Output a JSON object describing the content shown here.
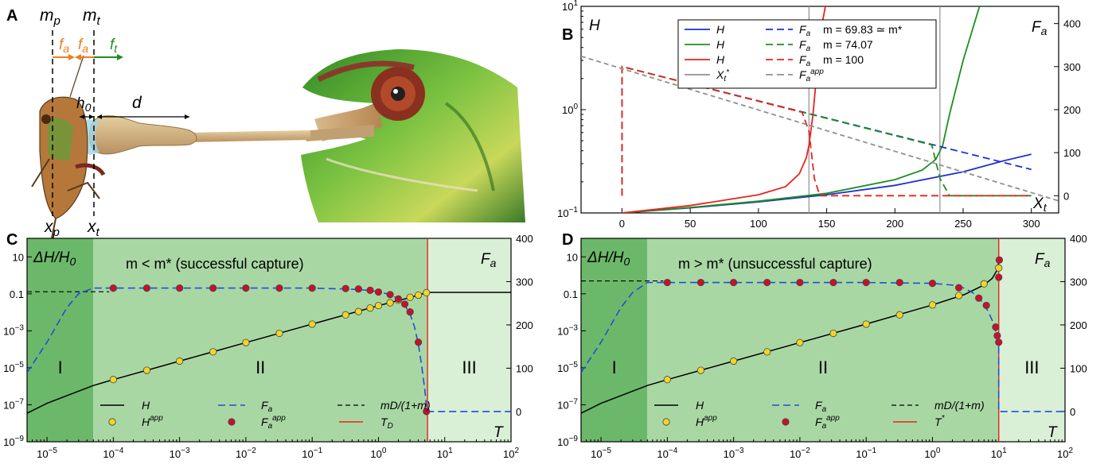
{
  "panels": {
    "A": {
      "letter": "A",
      "labels": {
        "m_p": "m",
        "m_p_sub": "p",
        "m_t": "m",
        "m_t_sub": "t",
        "f_a": "f",
        "f_a_sub": "a",
        "f_t": "f",
        "f_t_sub": "t",
        "h0": "h",
        "h0_sub": "0",
        "d": "d",
        "x_p": "x",
        "x_p_sub": "p",
        "x_t": "x",
        "x_t_sub": "t"
      },
      "colors": {
        "orange": "#f07d1a",
        "green": "#1e8f1e"
      },
      "illustration": [
        "cricket-drawing",
        "chameleon-drawing",
        "tongue-drawing"
      ]
    },
    "B": {
      "letter": "B",
      "left_label": "H",
      "right_label": "F",
      "right_label_sub": "a",
      "x_label": "X",
      "x_label_sub": "t",
      "legend": {
        "col1": [
          {
            "color": "#1f2fd0",
            "text": "H",
            "style": "solid"
          },
          {
            "color": "#1e8f1e",
            "text": "H",
            "style": "solid"
          },
          {
            "color": "#e8231e",
            "text": "H",
            "style": "solid"
          },
          {
            "color": "#909090",
            "text": "X",
            "sub": "t",
            "sup": "*",
            "style": "solid"
          }
        ],
        "col2": [
          {
            "color": "#1f2fd0",
            "text": "F",
            "sub": "a",
            "style": "dash"
          },
          {
            "color": "#1e8f1e",
            "text": "F",
            "sub": "a",
            "style": "dash"
          },
          {
            "color": "#e8231e",
            "text": "F",
            "sub": "a",
            "style": "dash"
          },
          {
            "color": "#909090",
            "text": "F",
            "sub": "a",
            "sup": "app",
            "style": "dash"
          }
        ],
        "col3": [
          {
            "color": "#1f2fd0",
            "text": "m = 69.83 ≃ m*"
          },
          {
            "color": "#1e8f1e",
            "text": "m = 74.07"
          },
          {
            "color": "#e8231e",
            "text": "m = 100"
          }
        ]
      }
    },
    "C": {
      "letter": "C",
      "left_label": "ΔH/H",
      "left_label_sub": "0",
      "right_label": "F",
      "right_label_sub": "a",
      "x_label": "T",
      "caption": "m < m* (successful capture)",
      "regions": [
        "I",
        "II",
        "III"
      ],
      "legend": [
        {
          "text": "H",
          "style": "line",
          "color": "#000000"
        },
        {
          "text": "H",
          "sup": "app",
          "style": "yellow-dot"
        },
        {
          "text": "F",
          "sub": "a",
          "style": "blue-dash"
        },
        {
          "text": "F",
          "sub": "a",
          "sup": "app",
          "style": "red-dot"
        },
        {
          "text": "mD/(1+m)",
          "style": "black-dash"
        },
        {
          "text": "T",
          "sub": "D",
          "style": "red-line"
        }
      ]
    },
    "D": {
      "letter": "D",
      "left_label": "ΔH/H",
      "left_label_sub": "0",
      "right_label": "F",
      "right_label_sub": "a",
      "x_label": "T",
      "caption": "m > m* (unsuccessful capture)",
      "regions": [
        "I",
        "II",
        "III"
      ],
      "legend": [
        {
          "text": "H",
          "style": "line",
          "color": "#000000"
        },
        {
          "text": "H",
          "sup": "app",
          "style": "yellow-dot"
        },
        {
          "text": "F",
          "sub": "a",
          "style": "blue-dash"
        },
        {
          "text": "F",
          "sub": "a",
          "sup": "app",
          "style": "red-dot"
        },
        {
          "text": "mD/(1+m)",
          "style": "black-dash"
        },
        {
          "text": "T",
          "sup": "*",
          "style": "red-line"
        }
      ]
    }
  },
  "chart_data": [
    {
      "panel": "B",
      "type": "line",
      "xlim": [
        -30,
        320
      ],
      "x_ticks": [
        0,
        50,
        100,
        150,
        200,
        250,
        300
      ],
      "y_left": {
        "scale": "log",
        "lim": [
          0.1,
          10
        ],
        "ticks": [
          "10^-1",
          "10^0",
          "10^1"
        ]
      },
      "y_right": {
        "lim": [
          -40,
          440
        ],
        "ticks": [
          0,
          100,
          200,
          300,
          400
        ]
      },
      "vlines": [
        {
          "x": 137,
          "color": "#909090"
        },
        {
          "x": 233,
          "color": "#909090"
        }
      ],
      "series": [
        {
          "color": "#1f2fd0",
          "axis": "left",
          "x": [
            0,
            50,
            100,
            150,
            200,
            250,
            280,
            300
          ],
          "y": [
            0.1,
            0.112,
            0.128,
            0.15,
            0.185,
            0.25,
            0.32,
            0.37
          ]
        },
        {
          "color": "#1e8f1e",
          "axis": "left",
          "x": [
            0,
            50,
            100,
            150,
            200,
            220,
            230,
            235,
            240,
            250,
            262
          ],
          "y": [
            0.1,
            0.113,
            0.13,
            0.155,
            0.21,
            0.26,
            0.33,
            0.45,
            0.9,
            3.0,
            10
          ]
        },
        {
          "color": "#e8231e",
          "axis": "left",
          "x": [
            0,
            50,
            100,
            120,
            130,
            135,
            137,
            140,
            143,
            146,
            149
          ],
          "y": [
            0.1,
            0.118,
            0.15,
            0.18,
            0.24,
            0.34,
            0.45,
            0.9,
            2.5,
            6.0,
            10
          ]
        },
        {
          "color": "#1f2fd0",
          "axis": "right",
          "style": "dash",
          "x": [
            0,
            0,
            300
          ],
          "y": [
            0,
            300,
            61
          ]
        },
        {
          "color": "#1e8f1e",
          "axis": "right",
          "style": "dash",
          "x": [
            0,
            0,
            227,
            233,
            240,
            300
          ],
          "y": [
            0,
            300,
            118,
            40,
            0,
            0
          ]
        },
        {
          "color": "#e8231e",
          "axis": "right",
          "style": "dash",
          "x": [
            0,
            0,
            132,
            137,
            141,
            145,
            300
          ],
          "y": [
            0,
            300,
            194,
            150,
            40,
            0,
            0
          ]
        },
        {
          "color": "#909090",
          "axis": "right",
          "style": "dash",
          "x": [
            -30,
            320
          ],
          "y": [
            324,
            -12
          ]
        }
      ]
    },
    {
      "panel": "C",
      "type": "line",
      "x_scale": "log",
      "xlim": [
        5e-06,
        100
      ],
      "x_ticks": [
        "10^-5",
        "10^-4",
        "10^-3",
        "10^-2",
        "10^-1",
        "10^0",
        "10^1",
        "10^2"
      ],
      "y_left": {
        "scale": "log",
        "lim": [
          1e-09,
          100
        ],
        "ticks": [
          "10^-9",
          "10^-7",
          "10^-5",
          "10^-3",
          "0.1",
          "10"
        ]
      },
      "y_right": {
        "lim": [
          -70,
          400
        ],
        "ticks": [
          0,
          100,
          200,
          300,
          400
        ]
      },
      "region_bounds": [
        5e-05,
        5.5
      ],
      "vline": 5.5,
      "asymptote": 0.13,
      "H": {
        "x": [
          5e-06,
          1e-05,
          5e-05,
          0.0001,
          0.001,
          0.01,
          0.1,
          1,
          3,
          5.5,
          100
        ],
        "y": [
          3.5e-08,
          1.2e-07,
          1.1e-06,
          2.3e-06,
          2.3e-05,
          0.00023,
          0.0023,
          0.023,
          0.063,
          0.12,
          0.12
        ]
      },
      "H_app": {
        "x": [
          0.0001,
          0.00032,
          0.001,
          0.0032,
          0.01,
          0.032,
          0.1,
          0.32,
          0.5,
          0.75,
          1,
          1.5,
          2,
          3,
          4,
          5.3
        ],
        "y": [
          2.3e-06,
          7.3e-06,
          2.3e-05,
          7.3e-05,
          0.00023,
          0.00073,
          0.0023,
          0.0073,
          0.011,
          0.017,
          0.023,
          0.033,
          0.045,
          0.065,
          0.085,
          0.115
        ]
      },
      "F_a": {
        "x": [
          5e-06,
          1e-05,
          2e-05,
          3e-05,
          5e-05,
          0.0001,
          0.1,
          0.5,
          1,
          1.5,
          2,
          2.5,
          3,
          3.5,
          4,
          4.5,
          5,
          5.3,
          5.5,
          100
        ],
        "y": [
          90,
          160,
          240,
          272,
          285,
          285,
          285,
          282,
          277,
          270,
          260,
          245,
          225,
          195,
          155,
          105,
          50,
          10,
          0,
          0
        ]
      },
      "F_app": {
        "x": [
          0.0001,
          0.00032,
          0.001,
          0.0032,
          0.01,
          0.032,
          0.1,
          0.32,
          0.5,
          0.75,
          1,
          1.5,
          2,
          2.5,
          3,
          4,
          5.3
        ],
        "y": [
          285,
          285,
          285,
          285,
          285,
          285,
          285,
          284,
          283,
          280,
          276,
          270,
          260,
          248,
          230,
          160,
          0
        ]
      }
    },
    {
      "panel": "D",
      "type": "line",
      "x_scale": "log",
      "xlim": [
        5e-06,
        100
      ],
      "x_ticks": [
        "10^-5",
        "10^-4",
        "10^-3",
        "10^-2",
        "10^-1",
        "10^0",
        "10^1",
        "10^2"
      ],
      "y_left": {
        "scale": "log",
        "lim": [
          1e-09,
          100
        ],
        "ticks": [
          "10^-9",
          "10^-7",
          "10^-5",
          "10^-3",
          "0.1",
          "10"
        ]
      },
      "y_right": {
        "lim": [
          -70,
          400
        ],
        "ticks": [
          0,
          100,
          200,
          300,
          400
        ]
      },
      "region_bounds": [
        5e-05,
        10
      ],
      "vline": 10,
      "asymptote": 0.5,
      "H": {
        "x": [
          5e-06,
          1e-05,
          5e-05,
          0.0001,
          0.001,
          0.01,
          0.1,
          1,
          3,
          6,
          8,
          9.5,
          10
        ],
        "y": [
          3.5e-08,
          1.2e-07,
          1.1e-06,
          2.3e-06,
          2.3e-05,
          0.00023,
          0.0023,
          0.025,
          0.09,
          0.3,
          0.7,
          2,
          5
        ]
      },
      "H_app": {
        "x": [
          0.0001,
          0.00032,
          0.001,
          0.0032,
          0.01,
          0.032,
          0.1,
          0.32,
          1,
          2.5,
          6,
          10
        ],
        "y": [
          2.3e-06,
          7.3e-06,
          2.3e-05,
          7.3e-05,
          0.00023,
          0.00073,
          0.0023,
          0.0073,
          0.025,
          0.08,
          0.35,
          2.5
        ]
      },
      "F_a": {
        "x": [
          5e-06,
          1e-05,
          2e-05,
          3e-05,
          5e-05,
          0.0001,
          0.1,
          1,
          2,
          3,
          4,
          5,
          6,
          7,
          8,
          9,
          9.5,
          10,
          10,
          100
        ],
        "y": [
          90,
          160,
          240,
          275,
          298,
          298,
          298,
          296,
          292,
          285,
          275,
          262,
          248,
          230,
          210,
          185,
          170,
          150,
          0,
          0
        ]
      },
      "F_app": {
        "x": [
          0.0001,
          0.00032,
          0.001,
          0.0032,
          0.01,
          0.032,
          0.1,
          0.32,
          1,
          2.5,
          5,
          6.5,
          9,
          9.5,
          10,
          10,
          10.2
        ],
        "y": [
          298,
          298,
          298,
          298,
          298,
          298,
          298,
          298,
          296,
          286,
          262,
          245,
          195,
          175,
          160,
          310,
          350
        ]
      }
    }
  ]
}
